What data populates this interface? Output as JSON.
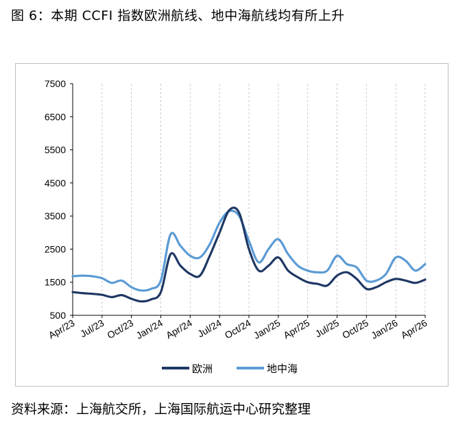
{
  "figure_title": "图 6：本期 CCFI 指数欧洲航线、地中海航线均有所上升",
  "source_note": "资料来源：上海航交所，上海国际航运中心研究整理",
  "chart_data": {
    "type": "line",
    "title": "",
    "xlabel": "",
    "ylabel": "",
    "ylim": [
      500,
      7500
    ],
    "yticks": [
      500,
      1500,
      2500,
      3500,
      4500,
      5500,
      6500,
      7500
    ],
    "xlim": [
      "2023-04",
      "2026-04"
    ],
    "xtick_labels": [
      "Apr/23",
      "Jul/23",
      "Oct/23",
      "Jan/24",
      "Apr/24",
      "Jul/24",
      "Oct/24",
      "Jan/25",
      "Apr/25",
      "Jul/25",
      "Oct/25",
      "Jan/26",
      "Apr/26"
    ],
    "grid": "vertical dashed",
    "legend_position": "bottom",
    "x": [
      "2023-04",
      "2023-05",
      "2023-06",
      "2023-07",
      "2023-08",
      "2023-09",
      "2023-10",
      "2023-11",
      "2023-12",
      "2024-01",
      "2024-02",
      "2024-03",
      "2024-04",
      "2024-05",
      "2024-06",
      "2024-07",
      "2024-08",
      "2024-09",
      "2024-10",
      "2024-11",
      "2024-12",
      "2025-01",
      "2025-02",
      "2025-03",
      "2025-04",
      "2025-05",
      "2025-06",
      "2025-07",
      "2025-08",
      "2025-09",
      "2025-10",
      "2025-11",
      "2025-12",
      "2026-01",
      "2026-02",
      "2026-03",
      "2026-04"
    ],
    "series": [
      {
        "name": "欧洲",
        "color": "#1f3864",
        "values": [
          1200,
          1170,
          1150,
          1120,
          1050,
          1110,
          1000,
          920,
          980,
          1200,
          2350,
          2000,
          1750,
          1700,
          2300,
          3000,
          3680,
          3600,
          2500,
          1850,
          2000,
          2250,
          1850,
          1650,
          1500,
          1450,
          1400,
          1700,
          1800,
          1600,
          1300,
          1350,
          1500,
          1600,
          1550,
          1480,
          1580
        ]
      },
      {
        "name": "地中海",
        "color": "#5b9bd5",
        "values": [
          1680,
          1700,
          1680,
          1620,
          1480,
          1550,
          1350,
          1250,
          1300,
          1550,
          2950,
          2600,
          2300,
          2250,
          2650,
          3300,
          3650,
          3500,
          2750,
          2100,
          2500,
          2800,
          2350,
          2000,
          1850,
          1800,
          1850,
          2300,
          2050,
          1950,
          1550,
          1550,
          1750,
          2250,
          2150,
          1850,
          2050
        ]
      }
    ]
  }
}
